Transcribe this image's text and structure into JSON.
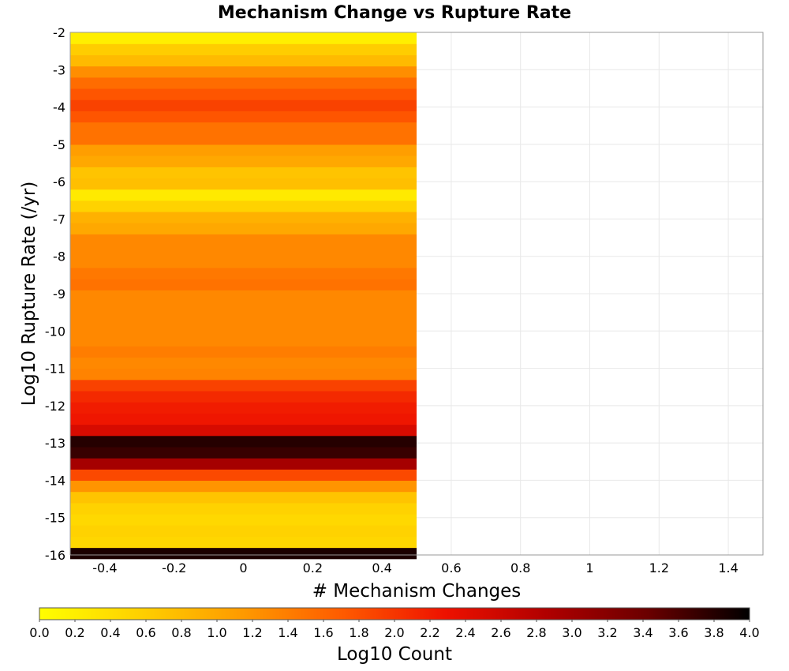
{
  "chart_data": {
    "type": "heatmap",
    "title": "Mechanism Change vs Rupture Rate",
    "xlabel": "# Mechanism Changes",
    "ylabel": "Log10 Rupture Rate (/yr)",
    "xlim": [
      -0.5,
      1.5
    ],
    "ylim": [
      -16,
      -2
    ],
    "x_ticks": [
      "-0.4",
      "-0.2",
      "0",
      "0.2",
      "0.4",
      "0.6",
      "0.8",
      "1",
      "1.2",
      "1.4"
    ],
    "y_ticks": [
      "-2",
      "-3",
      "-4",
      "-5",
      "-6",
      "-7",
      "-8",
      "-9",
      "-10",
      "-11",
      "-12",
      "-13",
      "-14",
      "-15",
      "-16"
    ],
    "grid": true,
    "colorbar": {
      "label": "Log10 Count",
      "range": [
        0.0,
        4.0
      ],
      "ticks": [
        "0.0",
        "0.2",
        "0.4",
        "0.6",
        "0.8",
        "1.0",
        "1.2",
        "1.4",
        "1.6",
        "1.8",
        "2.0",
        "2.2",
        "2.4",
        "2.6",
        "2.8",
        "3.0",
        "3.2",
        "3.4",
        "3.6",
        "3.8",
        "4.0"
      ],
      "placement": "bottom",
      "colors": [
        "#ffff00",
        "#ffd000",
        "#ff9a00",
        "#ff5a00",
        "#ee1100",
        "#b00000",
        "#6a0000",
        "#000000"
      ]
    },
    "x_bins": [
      0
    ],
    "bin_width_x": 1,
    "y_bin_width": 0.3,
    "y_bins": [
      -15.95,
      -15.65,
      -15.35,
      -15.05,
      -14.75,
      -14.45,
      -14.15,
      -13.85,
      -13.55,
      -13.25,
      -12.95,
      -12.65,
      -12.35,
      -12.05,
      -11.75,
      -11.45,
      -11.15,
      -10.85,
      -10.55,
      -10.25,
      -9.95,
      -9.65,
      -9.35,
      -9.05,
      -8.75,
      -8.45,
      -8.15,
      -7.85,
      -7.55,
      -7.25,
      -6.95,
      -6.65,
      -6.35,
      -6.05,
      -5.75,
      -5.45,
      -5.15,
      -4.85,
      -4.55,
      -4.25,
      -3.95,
      -3.65,
      -3.35,
      -3.05,
      -2.75,
      -2.45,
      -2.15
    ],
    "values": [
      3.85,
      0.5,
      0.55,
      0.48,
      0.55,
      0.7,
      1.2,
      1.85,
      2.95,
      3.7,
      3.8,
      2.5,
      2.25,
      2.2,
      2.1,
      1.9,
      1.35,
      1.3,
      1.4,
      1.3,
      1.3,
      1.3,
      1.3,
      1.3,
      1.5,
      1.45,
      1.3,
      1.3,
      1.3,
      1.0,
      0.9,
      0.55,
      0.25,
      0.75,
      0.7,
      1.0,
      1.1,
      1.5,
      1.5,
      1.75,
      1.9,
      1.75,
      1.55,
      1.25,
      0.8,
      0.6,
      0.2
    ]
  }
}
